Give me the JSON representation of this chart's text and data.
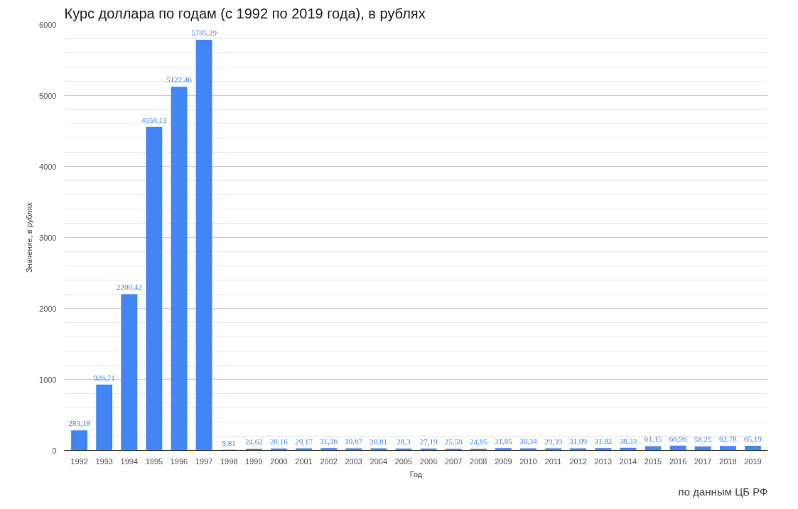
{
  "chart_data": {
    "type": "bar",
    "title": "Курс доллара по годам (с 1992 по 2019 года), в рублях",
    "xlabel": "Год",
    "ylabel": "Значение, в рублях",
    "categories": [
      "1992",
      "1993",
      "1994",
      "1995",
      "1996",
      "1997",
      "1998",
      "1999",
      "2000",
      "2001",
      "2002",
      "2003",
      "2004",
      "2005",
      "2006",
      "2007",
      "2008",
      "2009",
      "2010",
      "2011",
      "2012",
      "2013",
      "2014",
      "2015",
      "2016",
      "2017",
      "2018",
      "2019"
    ],
    "values": [
      283.18,
      926.71,
      2200.42,
      4558.13,
      5122.46,
      5785.29,
      9.81,
      24.62,
      28.16,
      29.17,
      31.36,
      30.67,
      28.81,
      28.3,
      27.19,
      25.58,
      24.85,
      31.85,
      30.34,
      29.39,
      31.09,
      31.82,
      38.33,
      61.15,
      66.96,
      58.25,
      62.78,
      65.19
    ],
    "value_labels": [
      "283,18",
      "926,71",
      "2200,42",
      "4558,13",
      "5122,46",
      "5785,29",
      "9,81",
      "24,62",
      "28,16",
      "29,17",
      "31,36",
      "30,67",
      "28,81",
      "28,3",
      "27,19",
      "25,58",
      "24,85",
      "31,85",
      "30,34",
      "29,39",
      "31,09",
      "31,82",
      "38,33",
      "61,15",
      "66,96",
      "58,25",
      "62,78",
      "65,19"
    ],
    "color": "#4285f4",
    "ylim": [
      0,
      6000
    ],
    "yticks": [
      0,
      1000,
      2000,
      3000,
      4000,
      5000,
      6000
    ],
    "grid": "y",
    "annotations": [
      "по данным ЦБ РФ"
    ]
  }
}
